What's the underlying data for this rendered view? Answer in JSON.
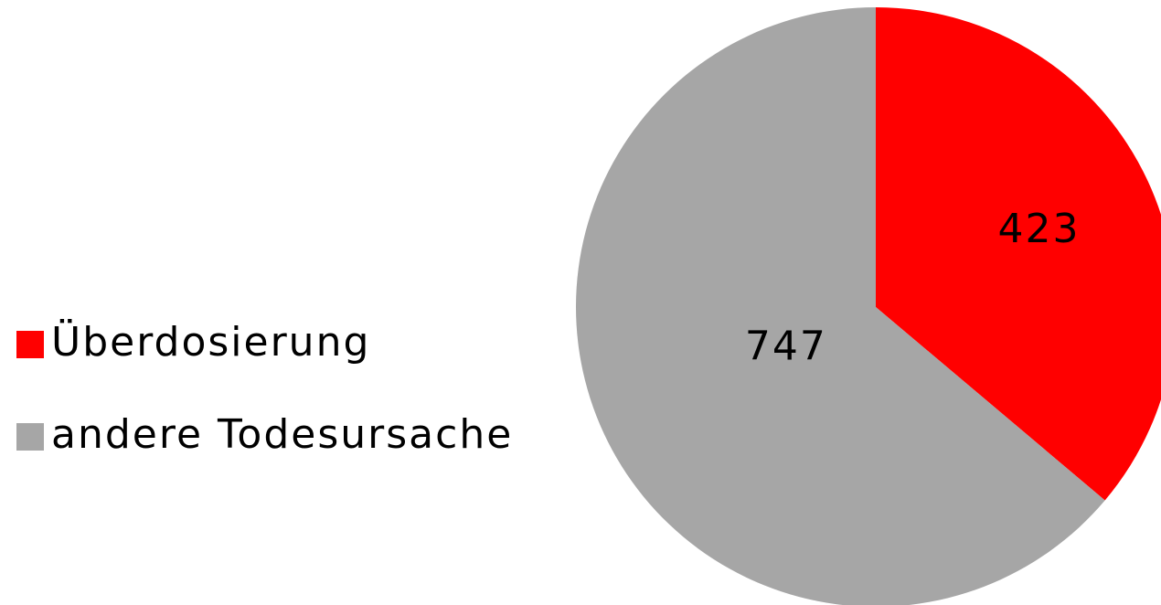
{
  "chart_data": {
    "type": "pie",
    "categories": [
      "Überdosierung",
      "andere Todesursache"
    ],
    "values": [
      423,
      747
    ],
    "colors": [
      "#ff0000",
      "#a6a6a6"
    ]
  }
}
